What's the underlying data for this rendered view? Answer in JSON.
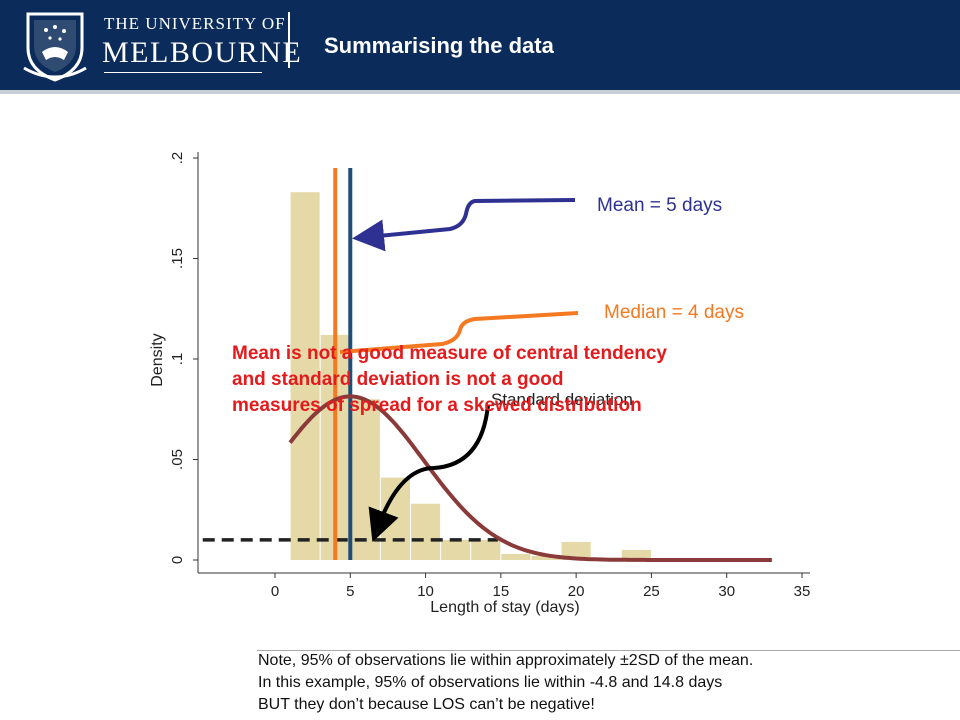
{
  "header": {
    "university_line1": "THE UNIVERSITY OF",
    "university_line2": "MELBOURNE",
    "slide_title": "Summarising the data"
  },
  "annotations": {
    "mean_label": "Mean = 5 days",
    "median_label": "Median = 4 days",
    "sd_label": "Standard deviation",
    "warning_lines": [
      "Mean is not a good measure of central tendency",
      "and standard deviation is not a good",
      "measures of spread for a skewed distribution"
    ]
  },
  "note_lines": [
    "Note, 95% of observations lie within approximately ±2SD of the mean.",
    "In this example, 95% of observations lie within -4.8 and 14.8 days",
    "BUT they don’t because LOS can’t be negative!"
  ],
  "colors": {
    "header_bg": "#0b2c5a",
    "bars": "#e5d9a8",
    "mean_line": "#1f4e79",
    "median_line": "#f47920",
    "normal_curve": "#8b3a3a",
    "mean_arrow": "#2e3192",
    "median_arrow": "#f47920",
    "warning_text": "#e41a1c"
  },
  "chart_data": {
    "type": "bar",
    "xlabel": "Length of stay (days)",
    "ylabel": "Density",
    "xlim": [
      -5,
      35
    ],
    "ylim": [
      0,
      0.2
    ],
    "x_ticks": [
      0,
      5,
      10,
      15,
      20,
      25,
      30,
      35
    ],
    "y_ticks": [
      0,
      0.05,
      0.1,
      0.15,
      0.2
    ],
    "y_tick_labels": [
      "0",
      ".05",
      ".1",
      ".15",
      ".2"
    ],
    "bin_width": 2,
    "bins": [
      {
        "start": 1,
        "density": 0.183
      },
      {
        "start": 3,
        "density": 0.112
      },
      {
        "start": 5,
        "density": 0.08
      },
      {
        "start": 7,
        "density": 0.041
      },
      {
        "start": 9,
        "density": 0.028
      },
      {
        "start": 11,
        "density": 0.01
      },
      {
        "start": 13,
        "density": 0.01
      },
      {
        "start": 15,
        "density": 0.003
      },
      {
        "start": 17,
        "density": 0.002
      },
      {
        "start": 19,
        "density": 0.009
      },
      {
        "start": 21,
        "density": 0.001
      },
      {
        "start": 23,
        "density": 0.005
      },
      {
        "start": 25,
        "density": 0.001
      },
      {
        "start": 27,
        "density": 0.001
      },
      {
        "start": 29,
        "density": 0.001
      },
      {
        "start": 31,
        "density": 0.001
      }
    ],
    "mean": 5,
    "median": 4,
    "normal_curve": {
      "mean": 5,
      "sd": 4.9,
      "x_from": 1,
      "x_to": 33
    },
    "sd_line": {
      "x_from": -4.8,
      "x_to": 14.8,
      "y": 0.01
    }
  }
}
